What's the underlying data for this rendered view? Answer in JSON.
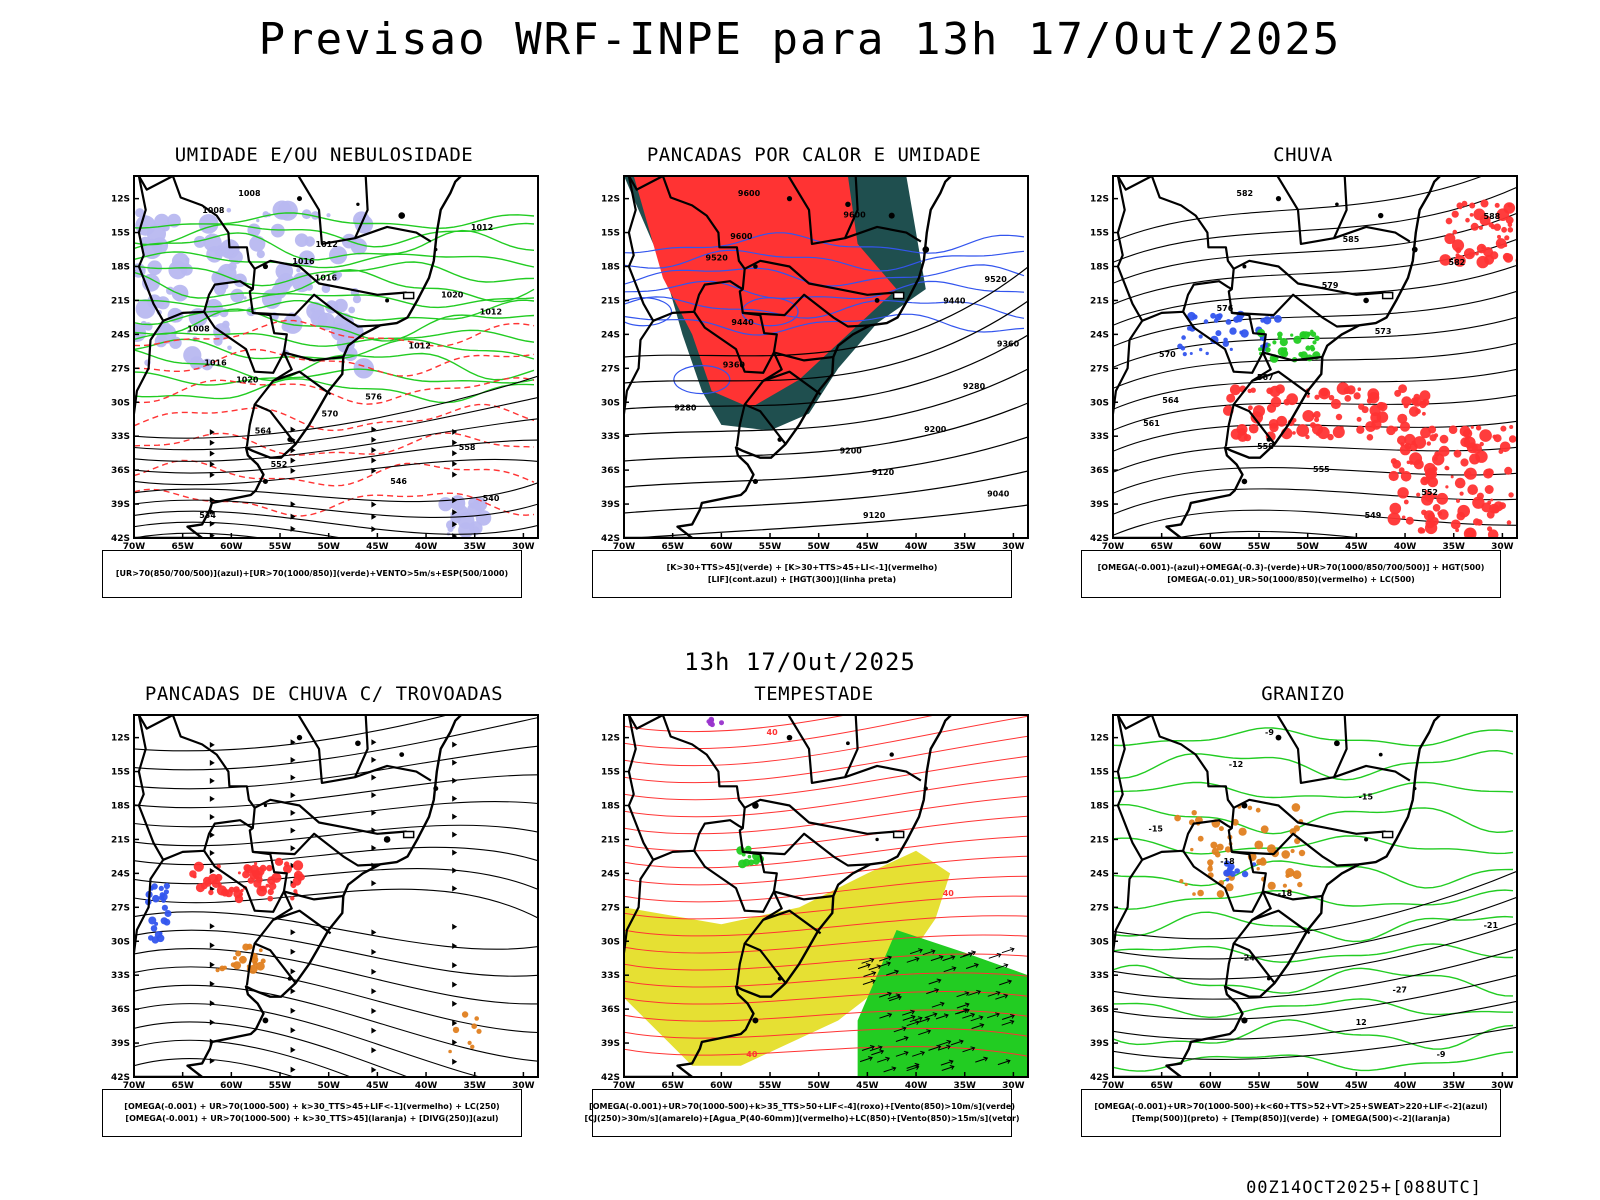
{
  "header": {
    "title": "Previsao WRF-INPE  para 13h 17/Out/2025"
  },
  "subtitle": "13h 17/Out/2025",
  "footer": "00Z14OCT2025+[088UTC]",
  "axes": {
    "lat_labels": [
      "12S",
      "15S",
      "18S",
      "21S",
      "24S",
      "27S",
      "30S",
      "33S",
      "36S",
      "39S",
      "42S"
    ],
    "lon_labels": [
      "70W",
      "65W",
      "60W",
      "55W",
      "50W",
      "45W",
      "40W",
      "35W",
      "30W"
    ]
  },
  "colors": {
    "blue": "#3355ee",
    "lavender": "#b8b8f0",
    "green": "#22cc22",
    "red": "#ff3333",
    "dark_teal": "#1f4f4f",
    "yellow": "#e6e033",
    "orange": "#e08020",
    "purple": "#9933cc",
    "black": "#000000"
  },
  "panels": [
    {
      "title": "UMIDADE E/OU NEBULOSIDADE",
      "legend": [
        "[UR>70(850/700/500)](azul)+[UR>70(1000/850)](verde)+VENTO>5m/s+ESP(500/1000)"
      ],
      "contour_labels": [
        "1008",
        "1008",
        "1012",
        "1012",
        "1016",
        "1016",
        "1020",
        "1012",
        "1008",
        "1012",
        "1016",
        "1020",
        "576",
        "570",
        "564",
        "558",
        "552",
        "546",
        "540",
        "534"
      ]
    },
    {
      "title": "PANCADAS POR CALOR E UMIDADE",
      "legend": [
        "[K>30+TTS>45](verde) + [K>30+TTS>45+LI<-1](vermelho)",
        "[LIF](cont.azul) + [HGT(300)](linha preta)"
      ],
      "contour_labels": [
        "9600",
        "9600",
        "9600",
        "9520",
        "9520",
        "9440",
        "9440",
        "9360",
        "9360",
        "9280",
        "9280",
        "9200",
        "9200",
        "9120",
        "9040",
        "9120"
      ]
    },
    {
      "title": "CHUVA",
      "legend": [
        "[OMEGA(-0.001)-(azul)+OMEGA(-0.3)-(verde)+UR>70(1000/850/700/500)] + HGT(500)",
        "[OMEGA(-0.01)_UR>50(1000/850)(vermelho) + LC(500)"
      ],
      "contour_labels": [
        "582",
        "588",
        "585",
        "582",
        "579",
        "576",
        "573",
        "570",
        "567",
        "564",
        "561",
        "558",
        "555",
        "552",
        "549"
      ]
    },
    {
      "title": "PANCADAS DE CHUVA C/ TROVOADAS",
      "legend": [
        "[OMEGA(-0.001) + UR>70(1000-500) + k>30_TTS>45+LIF<-1](vermelho) + LC(250)",
        "[OMEGA(-0.001) + UR>70(1000-500) + k>30_TTS>45](laranja) + [DIVG(250)](azul)"
      ],
      "contour_labels": []
    },
    {
      "title": "TEMPESTADE",
      "legend": [
        "[OMEGA(-0.001)+UR>70(1000-500)+k>35_TTS>50+LIF<-4](roxo)+[Vento(850)>10m/s](verde)",
        "[CJ(250)>30m/s](amarelo)+[Agua_P(40-60mm)](vermelho)+LC(850)+[Vento(850)>15m/s](vetor)"
      ],
      "contour_labels": [
        "40",
        "40",
        "40"
      ]
    },
    {
      "title": "GRANIZO",
      "legend": [
        "[OMEGA(-0.001)+UR>70(1000-500)+k<60+TTS>52+VT>25+SWEAT>220+LIF<-2](azul)",
        "[Temp(500)](preto) + [Temp(850)](verde) + [OMEGA(500)<-2](laranja)"
      ],
      "contour_labels": [
        "-9",
        "-12",
        "-15",
        "-15",
        "-18",
        "-18",
        "-21",
        "-24",
        "-27",
        "12",
        "-9"
      ]
    }
  ]
}
